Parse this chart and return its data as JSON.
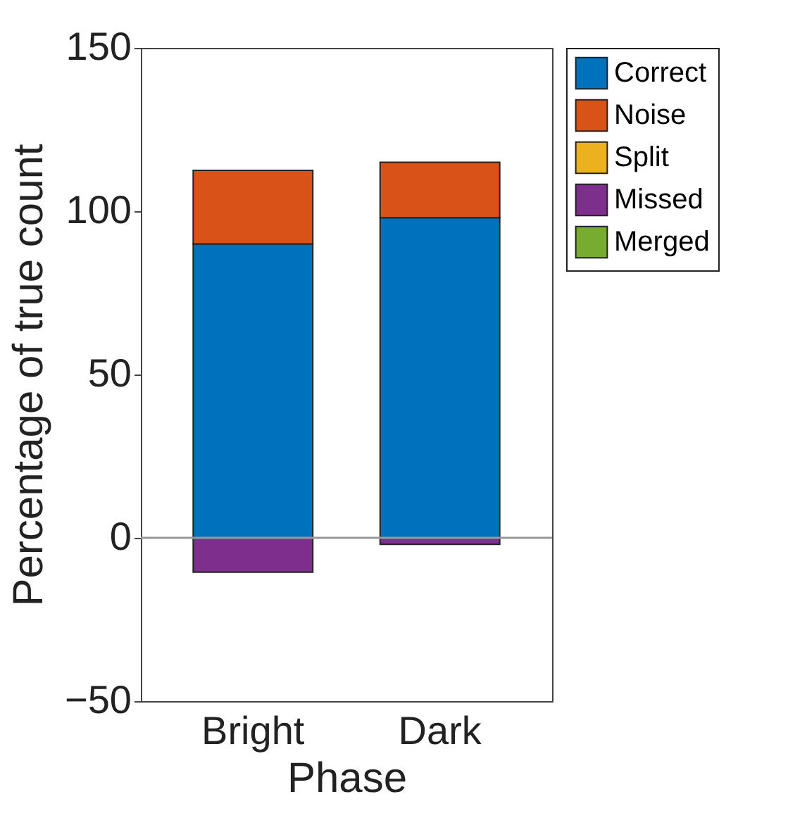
{
  "chart_data": {
    "type": "bar",
    "stacked": true,
    "xlabel": "Phase",
    "ylabel": "Percentage of true count",
    "categories": [
      "Bright",
      "Dark"
    ],
    "series": [
      {
        "name": "Correct",
        "color": "#0072bd",
        "values": [
          90,
          98
        ]
      },
      {
        "name": "Noise",
        "color": "#d95319",
        "values": [
          22.5,
          17
        ]
      },
      {
        "name": "Split",
        "color": "#edb120",
        "values": [
          null,
          null
        ]
      },
      {
        "name": "Missed",
        "color": "#7e2f8e",
        "values": [
          -10.5,
          -2
        ]
      },
      {
        "name": "Merged",
        "color": "#77ac30",
        "values": [
          null,
          null
        ]
      }
    ],
    "ylim": [
      -50,
      150
    ],
    "yticks": [
      -50,
      0,
      50,
      100,
      150
    ],
    "ref_lines": [
      {
        "axis": "y",
        "value": 0,
        "color": "#999999"
      }
    ],
    "legend": "top right",
    "grid": false
  }
}
